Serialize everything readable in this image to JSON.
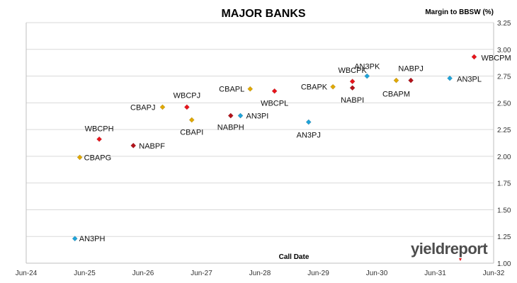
{
  "chart_data": {
    "type": "scatter",
    "title": "MAJOR BANKS",
    "ylabel": "Margin to BBSW (%)",
    "xlabel": "Call Date",
    "ylim": [
      1.0,
      3.25
    ],
    "yticks": [
      "1.00",
      "1.25",
      "1.50",
      "1.75",
      "2.00",
      "2.25",
      "2.50",
      "2.75",
      "3.00",
      "3.25"
    ],
    "xlim": [
      "2024-06",
      "2032-06"
    ],
    "xticks": [
      "Jun-24",
      "Jun-25",
      "Jun-26",
      "Jun-27",
      "Jun-28",
      "Jun-29",
      "Jun-30",
      "Jun-31",
      "Jun-32"
    ],
    "grid": true,
    "points": [
      {
        "label": "AN3PH",
        "x": "2025-04",
        "y": 1.23,
        "color": "#1fa3d9"
      },
      {
        "label": "CBAPG",
        "x": "2025-05",
        "y": 1.99,
        "color": "#e0a800"
      },
      {
        "label": "WBCPH",
        "x": "2025-09",
        "y": 2.16,
        "color": "#e8141b"
      },
      {
        "label": "NABPF",
        "x": "2026-04",
        "y": 2.1,
        "color": "#b3121a"
      },
      {
        "label": "CBAPJ",
        "x": "2026-10",
        "y": 2.46,
        "color": "#e0a800"
      },
      {
        "label": "WBCPJ",
        "x": "2027-03",
        "y": 2.46,
        "color": "#e8141b"
      },
      {
        "label": "CBAPI",
        "x": "2027-04",
        "y": 2.34,
        "color": "#e0a800"
      },
      {
        "label": "NABPH",
        "x": "2027-12",
        "y": 2.38,
        "color": "#b3121a"
      },
      {
        "label": "CBAPL",
        "x": "2028-04",
        "y": 2.63,
        "color": "#e0a800"
      },
      {
        "label": "AN3PI",
        "x": "2028-02",
        "y": 2.38,
        "color": "#1fa3d9"
      },
      {
        "label": "WBCPL",
        "x": "2028-09",
        "y": 2.61,
        "color": "#e8141b"
      },
      {
        "label": "AN3PJ",
        "x": "2029-04",
        "y": 2.32,
        "color": "#1fa3d9"
      },
      {
        "label": "CBAPK",
        "x": "2029-09",
        "y": 2.65,
        "color": "#e0a800"
      },
      {
        "label": "WBCPK",
        "x": "2030-01",
        "y": 2.7,
        "color": "#e8141b"
      },
      {
        "label": "NABPI",
        "x": "2030-01",
        "y": 2.64,
        "color": "#b3121a"
      },
      {
        "label": "AN3PK",
        "x": "2030-04",
        "y": 2.75,
        "color": "#1fa3d9"
      },
      {
        "label": "CBAPM",
        "x": "2030-10",
        "y": 2.71,
        "color": "#e0a800"
      },
      {
        "label": "NABPJ",
        "x": "2031-01",
        "y": 2.71,
        "color": "#b3121a"
      },
      {
        "label": "AN3PL",
        "x": "2031-09",
        "y": 2.73,
        "color": "#1fa3d9"
      },
      {
        "label": "WBCPM",
        "x": "2032-02",
        "y": 2.93,
        "color": "#e8141b"
      }
    ]
  },
  "brand": {
    "text": "yieldreport"
  }
}
